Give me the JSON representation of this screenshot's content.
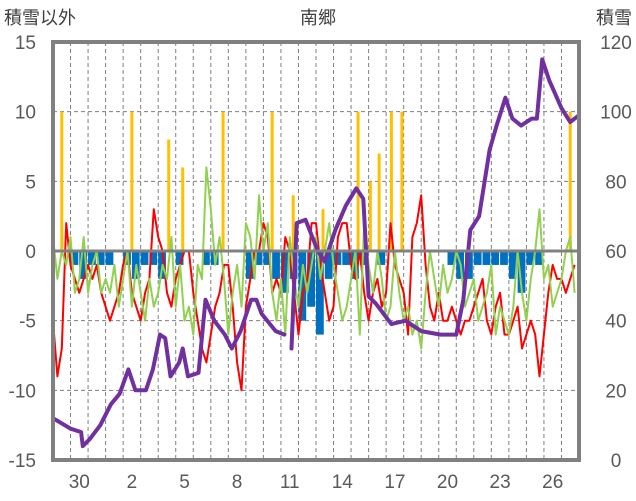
{
  "chart_data": {
    "type": "line",
    "title": "南郷",
    "ylabel_left": "積雪以外",
    "ylabel_right": "積雪",
    "ylim_left": [
      -15,
      15
    ],
    "ylim_right": [
      0,
      120
    ],
    "yticks_left": [
      "15",
      "10",
      "5",
      "0",
      "-5",
      "-10",
      "-15"
    ],
    "yticks_right": [
      "120",
      "100",
      "80",
      "60",
      "40",
      "20",
      "0"
    ],
    "xlim_days": [
      0,
      30
    ],
    "xticks": [
      {
        "day": 1.5,
        "label": "30"
      },
      {
        "day": 4.5,
        "label": "2"
      },
      {
        "day": 7.5,
        "label": "5"
      },
      {
        "day": 10.5,
        "label": "8"
      },
      {
        "day": 13.5,
        "label": "11"
      },
      {
        "day": 16.5,
        "label": "14"
      },
      {
        "day": 19.5,
        "label": "17"
      },
      {
        "day": 22.5,
        "label": "20"
      },
      {
        "day": 25.5,
        "label": "23"
      },
      {
        "day": 28.5,
        "label": "26"
      }
    ],
    "grid": "dashed horizontal every 5, dashed vertical every day",
    "colors": {
      "red": "#ff0000",
      "green": "#92d050",
      "purple": "#7030a0",
      "orange": "#ffc000",
      "blue": "#0070c0",
      "axis": "#808080"
    },
    "series": [
      {
        "name": "red",
        "axis": "left",
        "step_days": 0.25,
        "values": [
          -5,
          -9,
          -7,
          2,
          -1,
          -2,
          -3,
          -2,
          -1,
          -2,
          -1,
          -3,
          -4,
          -5,
          -4,
          -3,
          -1,
          0,
          -3,
          -4,
          -5,
          -3,
          -2,
          3,
          1,
          0,
          -3,
          -4,
          -2,
          -1,
          0,
          0,
          -3,
          -5,
          -7,
          -8,
          -6,
          -4,
          -3,
          -1,
          -1,
          -4,
          -8,
          -10,
          -4,
          -2,
          0,
          0,
          2,
          1,
          -3,
          -2,
          -3,
          1,
          0,
          -3,
          -6,
          -3,
          -2,
          2,
          2,
          -1,
          -3,
          -5,
          -4,
          1,
          2,
          2,
          -1,
          -2,
          0,
          -3,
          -5,
          -3,
          -2,
          -4,
          -3,
          2,
          -1,
          -2,
          -3,
          -6,
          1,
          2,
          4,
          -1,
          -4,
          -5,
          -3,
          -5,
          -5,
          -4,
          -5,
          -6,
          -5,
          -5,
          -4,
          -3,
          -2,
          -5,
          -6,
          -4,
          -3,
          -6,
          -6,
          -5,
          -4,
          -7,
          -6,
          -5,
          -6,
          -9,
          -6,
          -3,
          -1,
          -2,
          -2,
          -3,
          -2,
          -1
        ]
      },
      {
        "name": "green",
        "axis": "left",
        "step_days": 0.25,
        "values": [
          1,
          -2,
          0,
          -1,
          1,
          -3,
          -2,
          1,
          -3,
          -1,
          0,
          -3,
          -2,
          -3,
          -1,
          -4,
          -2,
          0,
          -4,
          -1,
          -3,
          -5,
          -2,
          -4,
          -3,
          -1,
          -2,
          1,
          -4,
          -1,
          -5,
          -4,
          -6,
          -1,
          -2,
          6,
          3,
          -1,
          1,
          -2,
          -6,
          -3,
          -1,
          -4,
          2,
          1,
          -2,
          4,
          0,
          2,
          -3,
          -5,
          -2,
          -6,
          1,
          -2,
          -4,
          -1,
          -3,
          -1,
          1,
          -2,
          0,
          2,
          -1,
          -3,
          -5,
          -4,
          -2,
          0,
          -6,
          2,
          -1,
          -3,
          0,
          -2,
          -5,
          -4,
          0,
          -3,
          -5,
          -4,
          -6,
          -5,
          -7,
          -3,
          0,
          -2,
          -4,
          -1,
          -3,
          -2,
          0,
          -1,
          -4,
          -3,
          -2,
          -5,
          -4,
          -3,
          -1,
          -6,
          -4,
          -5,
          -6,
          -4,
          0,
          -3,
          -5,
          -2,
          0,
          3,
          -2,
          -1,
          -4,
          -3,
          -2,
          0,
          1,
          -3
        ]
      },
      {
        "name": "purple",
        "axis": "right",
        "points": [
          [
            0,
            12
          ],
          [
            1,
            9
          ],
          [
            1.6,
            8
          ],
          [
            1.7,
            4
          ],
          [
            2.1,
            6
          ],
          [
            2.7,
            10
          ],
          [
            3.3,
            16
          ],
          [
            3.8,
            19
          ],
          [
            4.3,
            26
          ],
          [
            4.7,
            20
          ],
          [
            5.3,
            20
          ],
          [
            5.7,
            26
          ],
          [
            6.1,
            36
          ],
          [
            6.4,
            35
          ],
          [
            6.7,
            24
          ],
          [
            7.2,
            28
          ],
          [
            7.4,
            32
          ],
          [
            7.7,
            24
          ],
          [
            8.3,
            25
          ],
          [
            8.7,
            46
          ],
          [
            9.2,
            40
          ],
          [
            9.8,
            36
          ],
          [
            10.2,
            32
          ],
          [
            10.7,
            37
          ],
          [
            11.3,
            46
          ],
          [
            11.6,
            46
          ],
          [
            11.9,
            42
          ],
          [
            12.7,
            37
          ],
          [
            13.2,
            36
          ],
          [
            13.5,
            null
          ],
          [
            13.6,
            32
          ],
          [
            13.9,
            68
          ],
          [
            14.4,
            69
          ],
          [
            15.1,
            60
          ],
          [
            15.5,
            57
          ],
          [
            16.1,
            66
          ],
          [
            16.7,
            73
          ],
          [
            17.3,
            78
          ],
          [
            17.7,
            75
          ],
          [
            18,
            47
          ],
          [
            18.4,
            45
          ],
          [
            19.3,
            39
          ],
          [
            20.1,
            40
          ],
          [
            21,
            37
          ],
          [
            22.1,
            36
          ],
          [
            23,
            36
          ],
          [
            23.4,
            46
          ],
          [
            23.8,
            66
          ],
          [
            24.3,
            70
          ],
          [
            24.9,
            89
          ],
          [
            25.3,
            96
          ],
          [
            25.8,
            104
          ],
          [
            26.2,
            98
          ],
          [
            26.7,
            96
          ],
          [
            27.3,
            98
          ],
          [
            27.6,
            98
          ],
          [
            27.9,
            115
          ],
          [
            28.3,
            109
          ],
          [
            29,
            101
          ],
          [
            29.5,
            97
          ],
          [
            30,
            99
          ]
        ]
      },
      {
        "name": "orange",
        "type": "bar",
        "axis": "left",
        "points": [
          [
            0.5,
            10
          ],
          [
            4.5,
            10
          ],
          [
            6.6,
            8
          ],
          [
            7.4,
            6
          ],
          [
            9.7,
            10
          ],
          [
            12.5,
            10
          ],
          [
            13.7,
            4
          ],
          [
            15.4,
            3
          ],
          [
            17.4,
            10
          ],
          [
            18.1,
            5
          ],
          [
            18.6,
            7
          ],
          [
            19.3,
            10
          ],
          [
            19.9,
            10
          ],
          [
            29.5,
            10
          ]
        ]
      },
      {
        "name": "blue",
        "type": "bar",
        "axis": "left",
        "step_days": 0.5,
        "values": [
          0,
          0,
          -1,
          -2,
          -1,
          -1,
          -1,
          0,
          -1,
          -2,
          -1,
          -1,
          -2,
          0,
          -1,
          0,
          0,
          -1,
          -1,
          0,
          0,
          0,
          -2,
          -1,
          -1,
          -2,
          -3,
          -2,
          -5,
          -4,
          -6,
          -2,
          -1,
          -1,
          -2,
          -1,
          0,
          -1,
          0,
          0,
          0,
          0,
          0,
          0,
          0,
          -1,
          -2,
          -2,
          -1,
          -1,
          -1,
          -1,
          -2,
          -3,
          -1,
          -1,
          0,
          0,
          0,
          0
        ]
      }
    ]
  }
}
